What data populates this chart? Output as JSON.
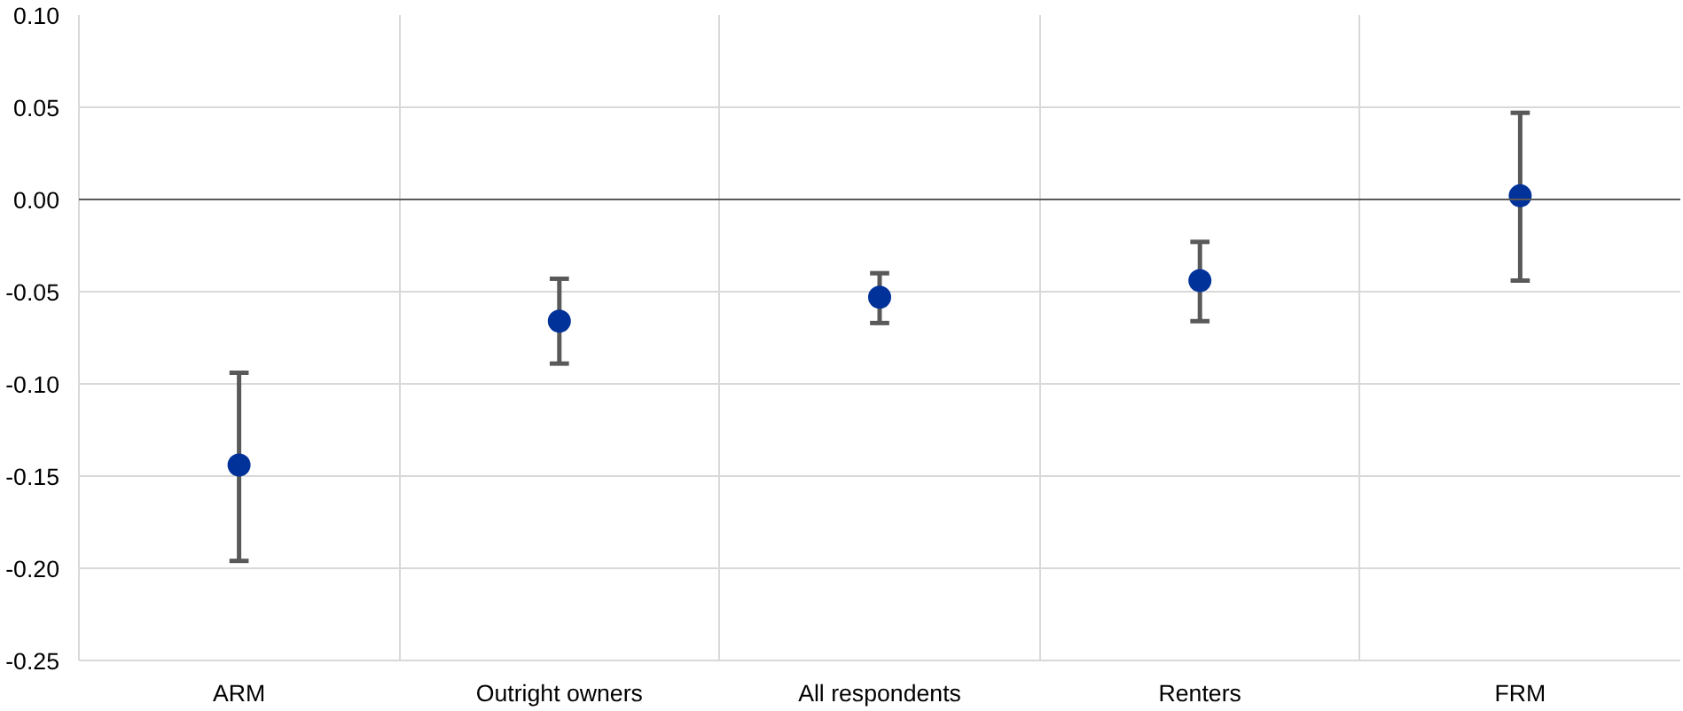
{
  "chart_data": {
    "type": "scatter",
    "categories": [
      "ARM",
      "Outright owners",
      "All respondents",
      "Renters",
      "FRM"
    ],
    "series": [
      {
        "color": "#003299",
        "values": [
          -0.144,
          -0.066,
          -0.053,
          -0.044,
          0.002
        ],
        "errors": [
          [
            -0.196,
            -0.094
          ],
          [
            -0.089,
            -0.043
          ],
          [
            -0.067,
            -0.04
          ],
          [
            -0.066,
            -0.023
          ],
          [
            -0.044,
            0.047
          ]
        ]
      }
    ],
    "ylim": [
      -0.25,
      0.1
    ],
    "yticks": [
      {
        "value": -0.25,
        "label": "-0.25"
      },
      {
        "value": -0.2,
        "label": "-0.20"
      },
      {
        "value": -0.15,
        "label": "-0.15"
      },
      {
        "value": -0.1,
        "label": "-0.10"
      },
      {
        "value": -0.05,
        "label": "-0.05"
      },
      {
        "value": 0,
        "label": "0.00"
      },
      {
        "value": 0.05,
        "label": "0.05"
      },
      {
        "value": 0.1,
        "label": "0.10"
      }
    ],
    "ref_lines": [
      {
        "axis": "y",
        "value": 0,
        "color": "#595959"
      }
    ],
    "grid": true,
    "marker": "circle"
  }
}
